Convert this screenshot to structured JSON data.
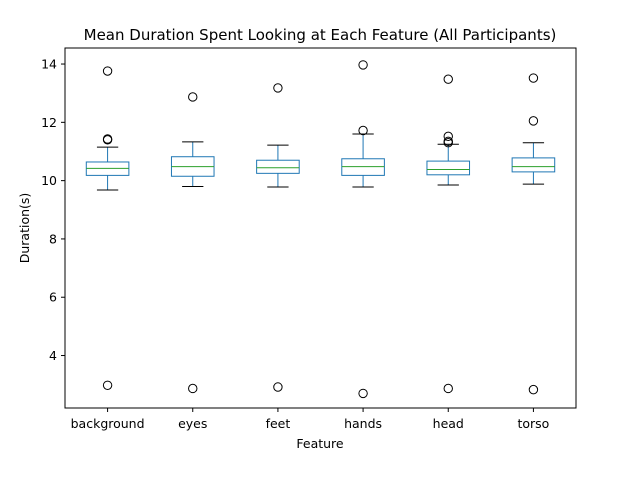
{
  "chart_data": {
    "type": "box",
    "title": "Mean Duration Spent Looking at Each Feature (All Participants)",
    "xlabel": "Feature",
    "ylabel": "Duration(s)",
    "ylim": [
      2.2,
      14.55
    ],
    "yticks": [
      4,
      6,
      8,
      10,
      12,
      14
    ],
    "grid": false,
    "categories": [
      "background",
      "eyes",
      "feet",
      "hands",
      "head",
      "torso"
    ],
    "series": [
      {
        "category": "background",
        "whisker_low": 9.68,
        "q1": 10.18,
        "median": 10.42,
        "q3": 10.64,
        "whisker_high": 11.15,
        "outliers": [
          13.76,
          11.43,
          11.4,
          2.98
        ]
      },
      {
        "category": "eyes",
        "whisker_low": 9.8,
        "q1": 10.15,
        "median": 10.48,
        "q3": 10.82,
        "whisker_high": 11.33,
        "outliers": [
          12.87,
          2.87
        ]
      },
      {
        "category": "feet",
        "whisker_low": 9.78,
        "q1": 10.25,
        "median": 10.44,
        "q3": 10.7,
        "whisker_high": 11.22,
        "outliers": [
          13.18,
          2.92
        ]
      },
      {
        "category": "hands",
        "whisker_low": 9.78,
        "q1": 10.18,
        "median": 10.48,
        "q3": 10.75,
        "whisker_high": 11.6,
        "outliers": [
          13.97,
          11.72,
          2.7
        ]
      },
      {
        "category": "head",
        "whisker_low": 9.85,
        "q1": 10.2,
        "median": 10.38,
        "q3": 10.67,
        "whisker_high": 11.25,
        "outliers": [
          13.48,
          11.52,
          11.35,
          11.3,
          2.87
        ]
      },
      {
        "category": "torso",
        "whisker_low": 9.88,
        "q1": 10.3,
        "median": 10.48,
        "q3": 10.78,
        "whisker_high": 11.3,
        "outliers": [
          13.52,
          12.05,
          2.83
        ]
      }
    ],
    "colors": {
      "box": "#1f77b4",
      "median": "#2ca02c",
      "whisker": "#1f77b4",
      "cap": "#000000",
      "outlier": "#000000"
    }
  }
}
